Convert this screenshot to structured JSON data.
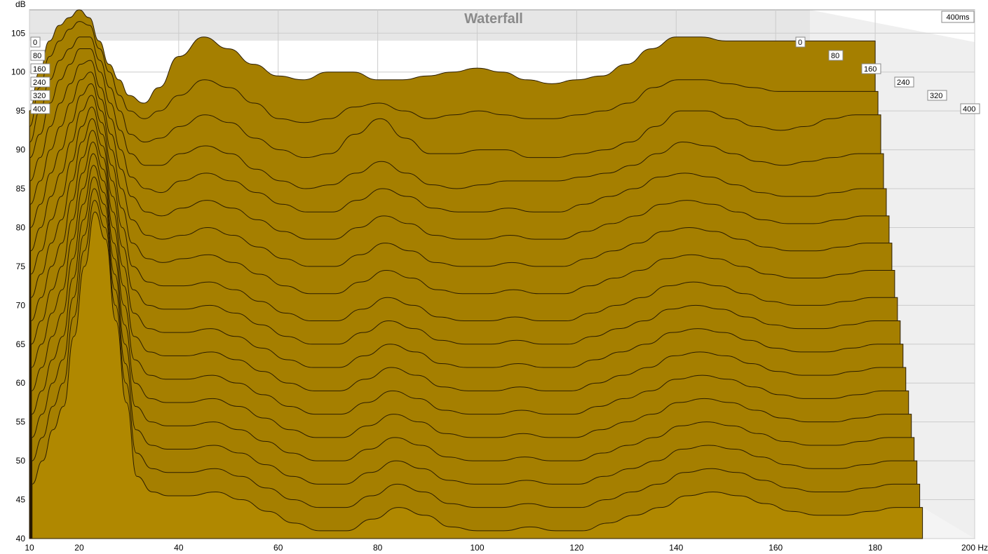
{
  "chart_data": {
    "type": "area",
    "title": "Waterfall",
    "ylabel": "dB",
    "xlabel": "",
    "x_unit_label": "Hz",
    "x_ticks": [
      "10",
      "20",
      "40",
      "60",
      "80",
      "100",
      "120",
      "140",
      "160",
      "180",
      "200 Hz"
    ],
    "y_ticks": [
      "105",
      "100",
      "95",
      "90",
      "85",
      "80",
      "75",
      "70",
      "65",
      "60",
      "55",
      "50",
      "45",
      "40"
    ],
    "time_ticks": [
      "0",
      "80",
      "160",
      "240",
      "320",
      "400"
    ],
    "time_corner_label": "400ms",
    "xlim": [
      10,
      200
    ],
    "ylim": [
      40,
      108
    ],
    "time_range_ms": [
      0,
      400
    ],
    "grid": true,
    "fill_color": "#a57f00",
    "front_fill_color": "#b08800",
    "line_color": "#2a1c00",
    "x": [
      10,
      12,
      14,
      16,
      18,
      20,
      22,
      24,
      26,
      28,
      30,
      33,
      36,
      40,
      45,
      50,
      55,
      60,
      65,
      70,
      75,
      80,
      85,
      90,
      95,
      100,
      105,
      110,
      115,
      120,
      125,
      130,
      135,
      140,
      145,
      150,
      155,
      160,
      165,
      170,
      175,
      180
    ],
    "series": [
      {
        "values": [
          95,
          100,
          104,
          106,
          107,
          108,
          107,
          104,
          101,
          99,
          97,
          96,
          98,
          102,
          104.5,
          103,
          101,
          99.5,
          99,
          100,
          100,
          99,
          99,
          99.5,
          100,
          100.5,
          100,
          99,
          98.5,
          99,
          99.5,
          101,
          103,
          104.5,
          104.5,
          104,
          104,
          104,
          104,
          104,
          104,
          104
        ]
      },
      {
        "values": [
          93,
          98,
          102,
          104,
          105.5,
          106.5,
          106,
          103,
          100,
          97,
          95,
          94,
          95,
          97,
          99,
          98,
          96,
          94,
          93.5,
          94,
          95.5,
          96,
          95,
          94,
          94.5,
          95,
          94.5,
          94,
          94,
          94.5,
          95,
          96,
          98,
          99,
          99,
          98.5,
          98,
          97.5,
          97.5,
          97.5,
          97.5,
          97.5
        ]
      },
      {
        "values": [
          91,
          95,
          99,
          101.5,
          103,
          104.5,
          104.5,
          101.5,
          98,
          95,
          92,
          91,
          91.5,
          93,
          94.5,
          93.5,
          91.5,
          90,
          89,
          89.5,
          92,
          94,
          91.5,
          89.5,
          89.5,
          90,
          90,
          89,
          89,
          89.5,
          90,
          91,
          93,
          95,
          95,
          94,
          93,
          92.5,
          93,
          94,
          94.5,
          94.5
        ]
      },
      {
        "values": [
          89,
          92,
          96,
          99,
          101,
          103,
          103,
          100,
          96,
          92.5,
          89.5,
          88,
          88,
          89.5,
          90.5,
          89.5,
          87.5,
          86,
          85,
          85.5,
          87,
          88.5,
          87,
          85.5,
          85,
          85.5,
          86,
          86,
          86,
          86.5,
          87,
          88,
          89.5,
          91,
          90.5,
          89.5,
          88.5,
          88,
          88.5,
          89,
          89.5,
          89.5
        ]
      },
      {
        "values": [
          86,
          89,
          93,
          96,
          98.5,
          101,
          101.5,
          98,
          94,
          90,
          86.5,
          85,
          84.5,
          86,
          87,
          86,
          84.5,
          83,
          82,
          82,
          83.5,
          85,
          84,
          82.5,
          82,
          82,
          82.5,
          82,
          82,
          83,
          84,
          85,
          86.5,
          87,
          86.5,
          85.5,
          84.5,
          84,
          84,
          84.5,
          85,
          85
        ]
      },
      {
        "values": [
          83,
          86,
          90,
          93,
          96,
          99,
          100,
          96.5,
          92,
          87.5,
          84,
          82,
          81.5,
          82.5,
          83.5,
          82.5,
          81,
          79.5,
          78.5,
          78.5,
          80,
          81.5,
          80.5,
          79,
          78.5,
          78.5,
          79,
          78.5,
          78.5,
          79.5,
          80.5,
          81.5,
          83,
          83.5,
          83,
          82,
          81,
          80.5,
          80.5,
          81,
          81.5,
          81.5
        ]
      },
      {
        "values": [
          80,
          83,
          87,
          90,
          93.5,
          97,
          98.5,
          95,
          90,
          85,
          81,
          79,
          78.5,
          79,
          80,
          79,
          77.5,
          76,
          75,
          75,
          76.5,
          78,
          77,
          75.5,
          75,
          75,
          75.5,
          75,
          75,
          76,
          77,
          78,
          79.5,
          80,
          79.5,
          78.5,
          77.5,
          77,
          77,
          77.5,
          78,
          78
        ]
      },
      {
        "values": [
          77,
          80,
          84,
          87,
          91,
          95,
          97,
          93.5,
          88,
          82.5,
          78,
          76,
          75.5,
          76,
          76.5,
          75.5,
          74,
          72.5,
          71.5,
          71.5,
          73,
          74.5,
          73.5,
          72,
          71.5,
          71.5,
          72,
          71.5,
          71.5,
          72.5,
          73.5,
          74.5,
          76,
          76.5,
          76,
          75,
          74,
          73.5,
          73.5,
          74,
          74.5,
          74.5
        ]
      },
      {
        "values": [
          74,
          77,
          81,
          84,
          88.5,
          93,
          95.5,
          92,
          86,
          80,
          75,
          73,
          72.5,
          72.5,
          73,
          72,
          70.5,
          69,
          68,
          68,
          69.5,
          71,
          70,
          68.5,
          68,
          68,
          68.5,
          68,
          68,
          69,
          70,
          71,
          72.5,
          73,
          72.5,
          71.5,
          70.5,
          70,
          70,
          70.5,
          71,
          71
        ]
      },
      {
        "values": [
          71,
          74,
          78,
          81,
          86,
          91,
          94,
          90.5,
          84,
          77.5,
          72,
          70,
          69.5,
          69.5,
          70,
          69,
          67.5,
          66,
          65,
          65,
          66.5,
          68,
          67,
          65.5,
          65,
          65,
          65.5,
          65,
          65,
          66,
          67,
          68,
          69.5,
          70,
          69.5,
          68.5,
          67.5,
          67,
          67,
          67.5,
          68,
          68
        ]
      },
      {
        "values": [
          68,
          71,
          75,
          78,
          83.5,
          89,
          92.5,
          89,
          82,
          75,
          69,
          67,
          66.5,
          66.5,
          67,
          66,
          64.5,
          63,
          62,
          62,
          63.5,
          65,
          64,
          62.5,
          62,
          62,
          62.5,
          62,
          62,
          63,
          64,
          65,
          66.5,
          67,
          66.5,
          65.5,
          64.5,
          64,
          64,
          64.5,
          65,
          65
        ]
      },
      {
        "values": [
          65,
          68,
          72,
          75,
          81,
          87,
          91,
          87.5,
          80,
          72.5,
          66,
          64,
          63.5,
          63.5,
          64,
          63,
          61.5,
          60,
          59,
          59,
          60.5,
          62,
          61,
          59.5,
          59,
          59,
          59.5,
          59,
          59,
          60,
          61,
          62,
          63.5,
          64,
          63.5,
          62.5,
          61.5,
          61,
          61,
          61.5,
          62,
          62
        ]
      },
      {
        "values": [
          62,
          65,
          69,
          72,
          78.5,
          85,
          89.5,
          86,
          78,
          70,
          63,
          61,
          60.5,
          60.5,
          61,
          60,
          58.5,
          57,
          56,
          56,
          57.5,
          59,
          58,
          56.5,
          56,
          56,
          56.5,
          56,
          56,
          57,
          58,
          59,
          60.5,
          61,
          60.5,
          59.5,
          58.5,
          58,
          58,
          58.5,
          59,
          59
        ]
      },
      {
        "values": [
          59,
          62,
          66,
          69,
          76,
          83,
          88,
          84.5,
          76,
          67.5,
          60,
          58,
          57.5,
          57.5,
          58,
          57,
          55.5,
          54,
          53,
          53,
          54.5,
          56,
          55,
          53.5,
          53,
          53,
          53.5,
          53,
          53,
          54,
          55,
          56,
          57.5,
          58,
          57.5,
          56.5,
          55.5,
          55,
          55,
          55.5,
          56,
          56
        ]
      },
      {
        "values": [
          56,
          59,
          63,
          66,
          73.5,
          81,
          86.5,
          83,
          74,
          65,
          57,
          55,
          54.5,
          54.5,
          55,
          54,
          52.5,
          51,
          50,
          50,
          51.5,
          53,
          52,
          50.5,
          50,
          50,
          50.5,
          50,
          50,
          51,
          52,
          53,
          54.5,
          55,
          54.5,
          53.5,
          52.5,
          52,
          52,
          52.5,
          53,
          53
        ]
      },
      {
        "values": [
          53,
          56,
          60,
          63,
          71,
          79,
          85,
          81.5,
          72,
          62.5,
          54,
          52,
          51.5,
          51.5,
          52,
          51,
          49.5,
          48,
          47,
          47,
          48.5,
          50,
          49,
          47.5,
          47,
          47,
          47.5,
          47,
          47,
          48,
          49,
          50,
          51.5,
          52,
          51.5,
          50.5,
          49.5,
          49,
          49,
          49.5,
          50,
          50
        ]
      },
      {
        "values": [
          50,
          53,
          57,
          60,
          68.5,
          77,
          83.5,
          80,
          70,
          60,
          51,
          49,
          48.5,
          48.5,
          49,
          48,
          46.5,
          45,
          44,
          44,
          45.5,
          47,
          46,
          44.5,
          44,
          44,
          44.5,
          44,
          44,
          45,
          46,
          47,
          48.5,
          49,
          48.5,
          47.5,
          46.5,
          46,
          46,
          46.5,
          47,
          47
        ]
      },
      {
        "values": [
          47,
          50,
          54,
          57,
          66,
          75,
          82,
          78.5,
          68,
          57.5,
          48,
          46,
          45.5,
          45.5,
          46,
          45,
          43.5,
          42,
          41,
          41,
          42.5,
          44,
          43,
          41.5,
          41,
          41,
          41.5,
          41,
          41,
          42,
          43,
          44,
          45.5,
          46,
          45.5,
          44.5,
          43.5,
          43,
          43,
          43.5,
          44,
          44
        ]
      }
    ]
  }
}
